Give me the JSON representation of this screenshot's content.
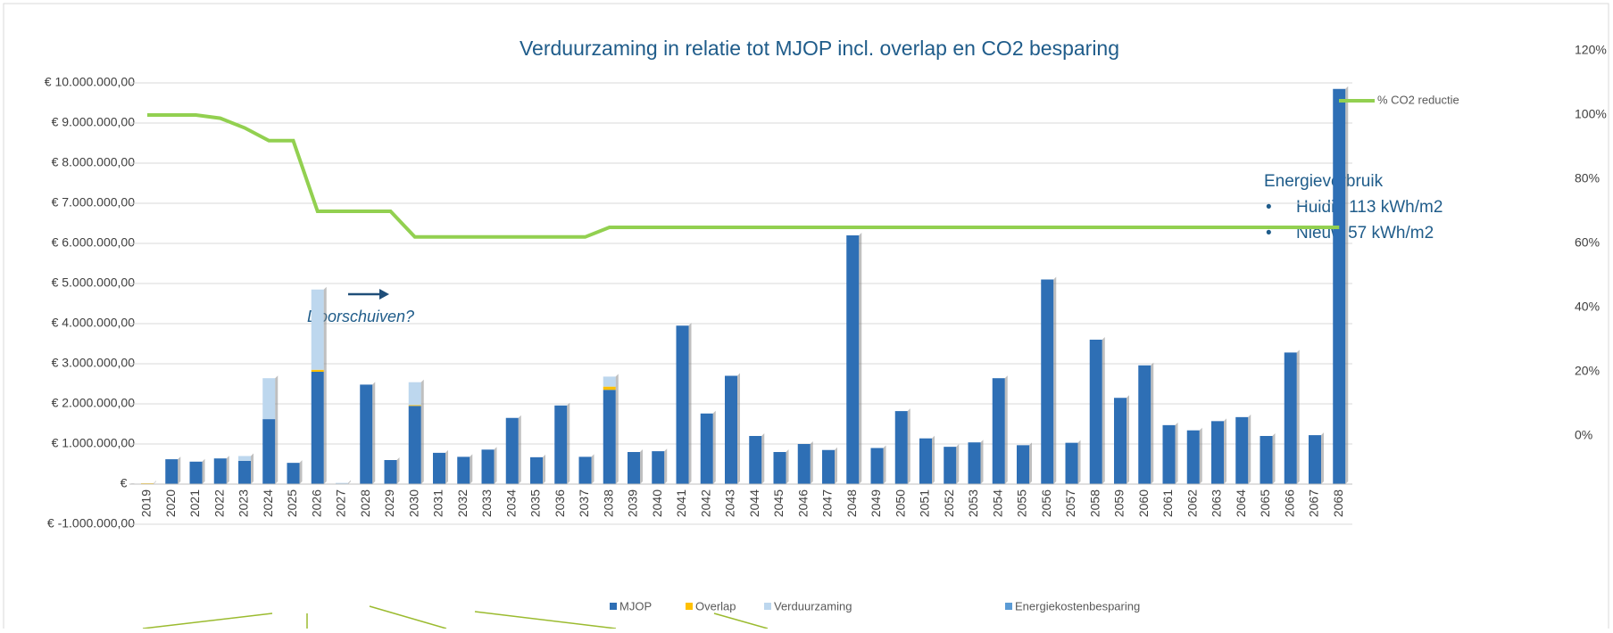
{
  "chart_data": {
    "type": "bar",
    "title": "Verduurzaming in relatie tot MJOP incl. overlap en CO2 besparing",
    "categories": [
      "2019",
      "2020",
      "2021",
      "2022",
      "2023",
      "2024",
      "2025",
      "2026",
      "2027",
      "2028",
      "2029",
      "2030",
      "2031",
      "2032",
      "2033",
      "2034",
      "2035",
      "2036",
      "2037",
      "2038",
      "2039",
      "2040",
      "2041",
      "2042",
      "2043",
      "2044",
      "2045",
      "2046",
      "2047",
      "2048",
      "2049",
      "2050",
      "2051",
      "2052",
      "2053",
      "2054",
      "2055",
      "2056",
      "2057",
      "2058",
      "2059",
      "2060",
      "2061",
      "2062",
      "2063",
      "2064",
      "2065",
      "2066",
      "2067",
      "2068"
    ],
    "series": [
      {
        "name": "MJOP",
        "color": "#2e6fb5",
        "values": [
          0,
          620000,
          560000,
          640000,
          580000,
          1620000,
          530000,
          2800000,
          0,
          2480000,
          600000,
          1950000,
          780000,
          680000,
          860000,
          1650000,
          670000,
          1960000,
          680000,
          2350000,
          800000,
          820000,
          3950000,
          1760000,
          2700000,
          1200000,
          800000,
          1000000,
          850000,
          6200000,
          900000,
          1820000,
          1140000,
          930000,
          1040000,
          2640000,
          970000,
          5100000,
          1030000,
          3600000,
          2150000,
          2960000,
          1470000,
          1340000,
          1570000,
          1670000,
          1200000,
          3280000,
          1220000,
          9850000
        ]
      },
      {
        "name": "Overlap",
        "color": "#ffc000",
        "values": [
          20000,
          0,
          0,
          0,
          0,
          0,
          0,
          50000,
          0,
          0,
          0,
          20000,
          0,
          0,
          0,
          0,
          0,
          0,
          0,
          80000,
          0,
          0,
          0,
          0,
          0,
          0,
          0,
          0,
          0,
          0,
          0,
          0,
          0,
          0,
          0,
          0,
          0,
          0,
          0,
          0,
          0,
          0,
          0,
          0,
          0,
          0,
          0,
          0,
          0,
          0
        ]
      },
      {
        "name": "Verduurzaming",
        "color": "#bdd7ee",
        "values": [
          0,
          0,
          0,
          0,
          120000,
          1020000,
          0,
          2000000,
          30000,
          0,
          0,
          570000,
          0,
          0,
          0,
          0,
          0,
          0,
          0,
          250000,
          0,
          0,
          0,
          0,
          0,
          0,
          0,
          0,
          0,
          0,
          0,
          0,
          0,
          0,
          0,
          0,
          0,
          0,
          0,
          0,
          0,
          0,
          0,
          0,
          0,
          0,
          0,
          0,
          0,
          0
        ]
      },
      {
        "name": "Energiekostenbesparing",
        "color": "#5b9bd5",
        "values": [
          0,
          0,
          0,
          0,
          0,
          0,
          0,
          0,
          0,
          0,
          0,
          0,
          0,
          0,
          0,
          0,
          0,
          0,
          0,
          0,
          0,
          0,
          0,
          0,
          0,
          0,
          0,
          0,
          0,
          0,
          0,
          0,
          0,
          0,
          0,
          0,
          0,
          0,
          0,
          0,
          0,
          0,
          0,
          0,
          0,
          0,
          0,
          0,
          0,
          0
        ]
      },
      {
        "name": "% CO2 reductie",
        "color": "#92d050",
        "type": "line",
        "axis": "y2",
        "values": [
          100,
          100,
          100,
          99,
          96,
          92,
          92,
          70,
          70,
          70,
          70,
          62,
          62,
          62,
          62,
          62,
          62,
          62,
          62,
          65,
          65,
          65,
          65,
          65,
          65,
          65,
          65,
          65,
          65,
          65,
          65,
          65,
          65,
          65,
          65,
          65,
          65,
          65,
          65,
          65,
          65,
          65,
          65,
          65,
          65,
          65,
          65,
          65,
          65,
          65
        ]
      }
    ],
    "ylim": [
      -1000000,
      10800000
    ],
    "yticks": [
      {
        "value": -1000000,
        "label": "€ -1.000.000,00"
      },
      {
        "value": 0,
        "label": "€ -"
      },
      {
        "value": 1000000,
        "label": "€ 1.000.000,00"
      },
      {
        "value": 2000000,
        "label": "€ 2.000.000,00"
      },
      {
        "value": 3000000,
        "label": "€ 3.000.000,00"
      },
      {
        "value": 4000000,
        "label": "€ 4.000.000,00"
      },
      {
        "value": 5000000,
        "label": "€ 5.000.000,00"
      },
      {
        "value": 6000000,
        "label": "€ 6.000.000,00"
      },
      {
        "value": 7000000,
        "label": "€ 7.000.000,00"
      },
      {
        "value": 8000000,
        "label": "€ 8.000.000,00"
      },
      {
        "value": 9000000,
        "label": "€ 9.000.000,00"
      },
      {
        "value": 10000000,
        "label": "€ 10.000.000,00"
      }
    ],
    "y2lim": [
      -27.5,
      120
    ],
    "y2ticks": [
      {
        "value": 0,
        "label": "0%"
      },
      {
        "value": 20,
        "label": "20%"
      },
      {
        "value": 40,
        "label": "40%"
      },
      {
        "value": 60,
        "label": "60%"
      },
      {
        "value": 80,
        "label": "80%"
      },
      {
        "value": 100,
        "label": "100%"
      },
      {
        "value": 120,
        "label": "120%"
      }
    ],
    "grid": true,
    "annotations": {
      "shift": "Doorschuiven?",
      "energy_title": "Energieverbruik",
      "energy_items": [
        "Huidig 113 kWh/m2",
        "Nieuw 57 kWh/m2"
      ]
    }
  }
}
